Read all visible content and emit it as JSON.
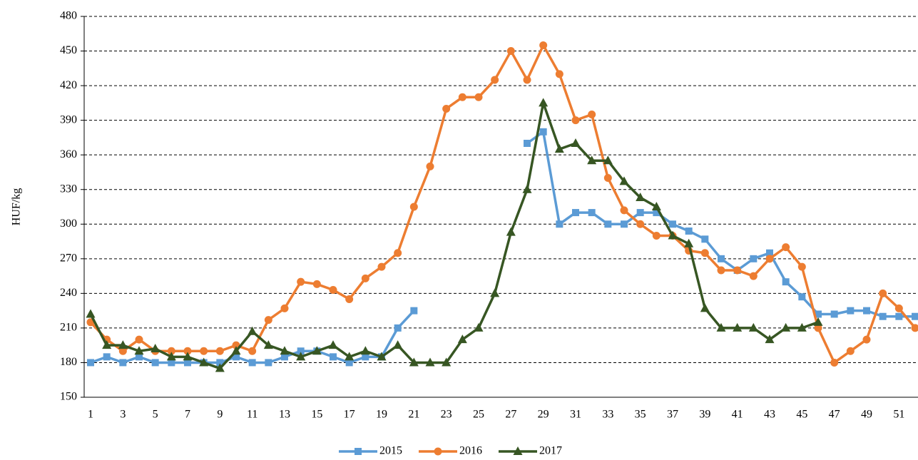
{
  "chart_data": {
    "type": "line",
    "ylabel": "HUF/kg",
    "categories": [
      "1",
      null,
      "3",
      null,
      "5",
      null,
      "7",
      null,
      "9",
      null,
      "11",
      null,
      "13",
      null,
      "15",
      null,
      "17",
      null,
      "19",
      null,
      "21",
      null,
      "23",
      null,
      "25",
      null,
      "27",
      null,
      "29",
      null,
      "31",
      null,
      "33",
      null,
      "35",
      null,
      "37",
      null,
      "39",
      null,
      "41",
      null,
      "43",
      null,
      "45",
      null,
      "47",
      null,
      "49",
      null,
      "51",
      null
    ],
    "series": [
      {
        "name": "2015",
        "color": "#5b9bd5",
        "marker": "square",
        "values": [
          180,
          185,
          180,
          185,
          180,
          180,
          180,
          180,
          180,
          185,
          180,
          180,
          185,
          190,
          190,
          185,
          180,
          185,
          185,
          210,
          225,
          null,
          null,
          null,
          null,
          null,
          null,
          370,
          380,
          300,
          310,
          310,
          300,
          300,
          310,
          310,
          300,
          294,
          287,
          270,
          260,
          270,
          275,
          250,
          237,
          222,
          222,
          225,
          225,
          220,
          220,
          220
        ]
      },
      {
        "name": "2016",
        "color": "#ed7d31",
        "marker": "circle",
        "values": [
          215,
          200,
          190,
          200,
          190,
          190,
          190,
          190,
          190,
          195,
          190,
          217,
          227,
          250,
          248,
          243,
          235,
          253,
          263,
          275,
          315,
          350,
          400,
          410,
          410,
          425,
          450,
          425,
          455,
          430,
          390,
          395,
          340,
          312,
          300,
          290,
          290,
          277,
          275,
          260,
          260,
          255,
          270,
          280,
          263,
          210,
          180,
          190,
          200,
          240,
          227,
          210
        ]
      },
      {
        "name": "2017",
        "color": "#375623",
        "marker": "triangle",
        "values": [
          222,
          195,
          195,
          190,
          192,
          185,
          185,
          180,
          175,
          190,
          207,
          195,
          190,
          185,
          190,
          195,
          185,
          190,
          185,
          195,
          180,
          180,
          180,
          200,
          210,
          240,
          293,
          330,
          405,
          365,
          370,
          355,
          355,
          337,
          323,
          315,
          290,
          283,
          227,
          210,
          210,
          210,
          200,
          210,
          210,
          215,
          null,
          null,
          null,
          null,
          null,
          null
        ]
      }
    ],
    "ylim": [
      150,
      480
    ],
    "yticks": [
      150,
      180,
      210,
      240,
      270,
      300,
      330,
      360,
      390,
      420,
      450,
      480
    ],
    "grid": true,
    "legend": "bottom"
  }
}
